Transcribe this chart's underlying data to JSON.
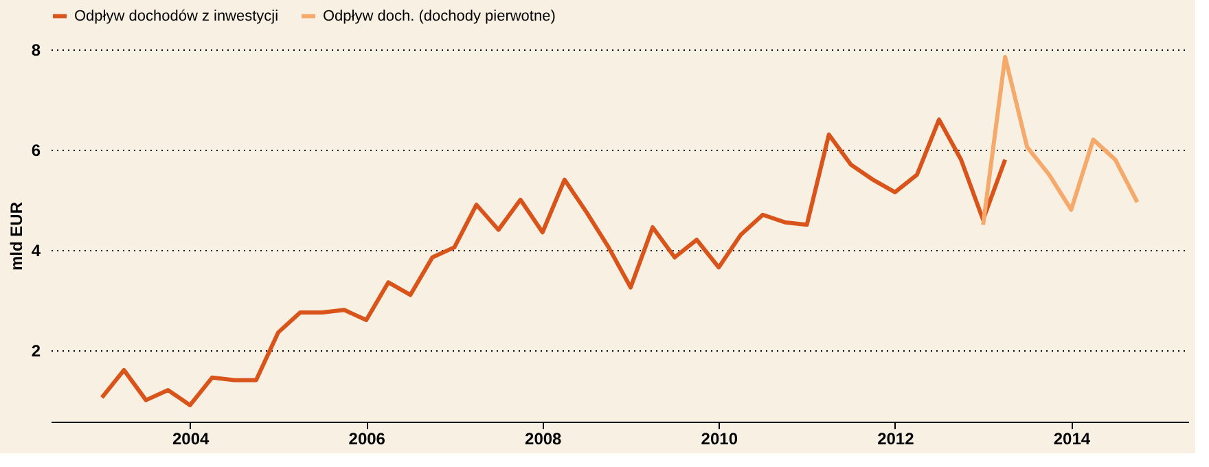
{
  "chart_data": {
    "type": "line",
    "ylabel": "mld EUR",
    "xlim": [
      2002.42,
      2015.33
    ],
    "xticks": [
      2004,
      2006,
      2008,
      2010,
      2012,
      2014
    ],
    "ylim": [
      0.57,
      8
    ],
    "yticks": [
      2,
      4,
      6,
      8
    ],
    "grid": "y",
    "legend": "top",
    "marker": "none",
    "line_style": "solid",
    "series": [
      {
        "name": "Odpływ dochodów z inwestycji",
        "color": "#d9541a",
        "x": [
          2003.0,
          2003.25,
          2003.5,
          2003.75,
          2004.0,
          2004.25,
          2004.5,
          2004.75,
          2005.0,
          2005.25,
          2005.5,
          2005.75,
          2006.0,
          2006.25,
          2006.5,
          2006.75,
          2007.0,
          2007.25,
          2007.5,
          2007.75,
          2008.0,
          2008.25,
          2008.5,
          2008.75,
          2009.0,
          2009.25,
          2009.5,
          2009.75,
          2010.0,
          2010.25,
          2010.5,
          2010.75,
          2011.0,
          2011.25,
          2011.5,
          2011.75,
          2012.0,
          2012.25,
          2012.5,
          2012.75,
          2013.0,
          2013.25
        ],
        "values": [
          1.05,
          1.6,
          1.0,
          1.2,
          0.9,
          1.45,
          1.4,
          1.4,
          2.35,
          2.75,
          2.75,
          2.8,
          2.6,
          3.35,
          3.1,
          3.85,
          4.05,
          4.9,
          4.4,
          5.0,
          4.35,
          5.4,
          4.75,
          4.05,
          3.25,
          4.45,
          3.85,
          4.2,
          3.65,
          4.3,
          4.7,
          4.55,
          4.5,
          6.3,
          5.7,
          5.4,
          5.15,
          5.5,
          6.6,
          5.8,
          4.6,
          5.8
        ]
      },
      {
        "name": "Odpływ doch. (dochody pierwotne)",
        "color": "#f5a96a",
        "x": [
          2013.0,
          2013.25,
          2013.5,
          2013.75,
          2014.0,
          2014.25,
          2014.5,
          2014.75
        ],
        "values": [
          4.5,
          7.85,
          6.05,
          5.5,
          4.8,
          6.2,
          5.8,
          4.95
        ]
      }
    ]
  }
}
